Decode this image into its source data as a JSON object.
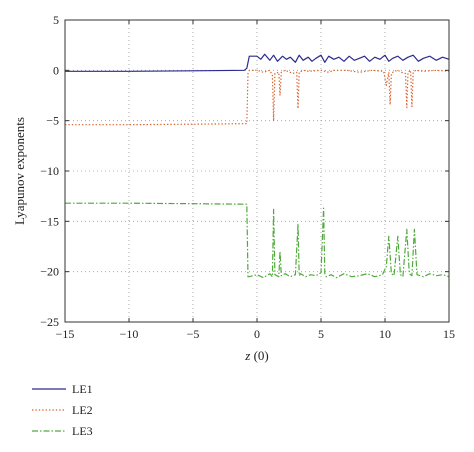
{
  "chart_data": {
    "type": "line",
    "title": "",
    "xlabel_var": "z",
    "xlabel_rest": " (0)",
    "ylabel": "Lyapunov exponents",
    "xlim": [
      -15,
      15
    ],
    "ylim": [
      -25,
      5
    ],
    "xticks": [
      -15,
      -10,
      -5,
      0,
      5,
      10,
      15
    ],
    "yticks": [
      5,
      0,
      -5,
      -10,
      -15,
      -20,
      -25
    ],
    "xtick_labels": [
      "−15",
      "−10",
      "−5",
      "0",
      "5",
      "10",
      "15"
    ],
    "ytick_labels": [
      "5",
      "0",
      "−5",
      "−10",
      "−15",
      "−20",
      "−25"
    ],
    "grid": true,
    "legend_position": "below",
    "series": [
      {
        "name": "LE1",
        "color": "#2b2b8f",
        "style": "solid",
        "x": [
          -15,
          -10,
          -5,
          -1,
          -0.8,
          -0.6,
          0,
          0.3,
          0.6,
          1,
          1.3,
          1.6,
          2,
          2.3,
          2.6,
          3,
          3.3,
          3.6,
          4,
          4.3,
          4.6,
          5,
          5.3,
          5.6,
          6,
          6.4,
          6.8,
          7.2,
          7.6,
          8,
          8.4,
          8.8,
          9.2,
          9.6,
          10,
          10.3,
          10.6,
          11,
          11.4,
          11.8,
          12.2,
          12.6,
          13,
          13.5,
          14,
          14.5,
          15
        ],
        "y": [
          -0.1,
          -0.1,
          -0.05,
          0,
          0.2,
          1.4,
          1.4,
          1.1,
          1.6,
          1.0,
          1.5,
          0.9,
          1.4,
          1.1,
          1.3,
          0.8,
          1.5,
          1.0,
          1.3,
          0.9,
          1.2,
          1.5,
          0.8,
          1.4,
          1.1,
          1.3,
          0.9,
          1.4,
          1.0,
          1.2,
          1.4,
          0.9,
          1.3,
          1.1,
          1.5,
          0.9,
          1.2,
          1.4,
          1.0,
          1.3,
          1.5,
          0.9,
          1.2,
          1.4,
          1.0,
          1.3,
          1.1
        ]
      },
      {
        "name": "LE2",
        "color": "#d9622b",
        "style": "dotted",
        "x": [
          -15,
          -10,
          -5,
          -1,
          -0.8,
          -0.7,
          -0.6,
          0,
          0.5,
          1,
          1.2,
          1.3,
          1.4,
          1.7,
          1.8,
          1.9,
          2.2,
          2.8,
          3.1,
          3.2,
          3.3,
          3.6,
          4,
          5,
          5.6,
          6,
          7,
          8,
          9,
          9.9,
          10.1,
          10.3,
          10.4,
          10.5,
          10.7,
          11,
          11.3,
          11.6,
          11.7,
          11.8,
          12,
          12.1,
          12.2,
          12.4,
          13,
          14,
          15
        ],
        "y": [
          -5.4,
          -5.4,
          -5.35,
          -5.3,
          -5.3,
          -0.3,
          0,
          0,
          -0.2,
          0,
          -0.5,
          -5.0,
          -0.3,
          -0.2,
          -2.5,
          -0.2,
          0,
          -0.3,
          -0.2,
          -3.8,
          -0.2,
          0,
          -0.1,
          0,
          -0.2,
          0,
          0,
          -0.2,
          0,
          -0.1,
          -1.5,
          -0.2,
          -3.4,
          -0.3,
          -0.1,
          0,
          -0.2,
          -0.3,
          -3.7,
          -0.2,
          0,
          -3.6,
          -0.2,
          0,
          -0.1,
          0,
          -0.1
        ]
      },
      {
        "name": "LE3",
        "color": "#4faa3a",
        "style": "dashdot",
        "x": [
          -15,
          -10,
          -5,
          -1,
          -0.8,
          -0.7,
          -0.6,
          0,
          0.5,
          1,
          1.2,
          1.3,
          1.4,
          1.7,
          1.8,
          1.9,
          2.2,
          2.6,
          3,
          3.2,
          3.3,
          3.4,
          3.8,
          4.2,
          4.6,
          5,
          5.2,
          5.3,
          5.4,
          5.8,
          6.2,
          6.8,
          7.4,
          8,
          8.6,
          9.2,
          9.8,
          10.1,
          10.3,
          10.5,
          10.7,
          11,
          11.2,
          11.4,
          11.7,
          11.9,
          12.1,
          12.3,
          12.5,
          13,
          13.5,
          14,
          14.5,
          15
        ],
        "y": [
          -13.2,
          -13.2,
          -13.25,
          -13.3,
          -13.3,
          -20.5,
          -20.5,
          -20.3,
          -20.6,
          -20.2,
          -20.5,
          -13.8,
          -20.3,
          -20.5,
          -18.0,
          -20.4,
          -20.2,
          -20.5,
          -20.3,
          -15.3,
          -20.4,
          -20.2,
          -20.5,
          -20.3,
          -20.4,
          -20.1,
          -13.7,
          -20.2,
          -20.5,
          -20.3,
          -20.6,
          -20.2,
          -20.5,
          -20.4,
          -20.2,
          -20.5,
          -20.3,
          -19.5,
          -16.5,
          -20.2,
          -20.4,
          -16.5,
          -20.3,
          -20.5,
          -15.8,
          -20.2,
          -20.4,
          -15.8,
          -20.3,
          -20.5,
          -20.2,
          -20.4,
          -20.3,
          -20.5
        ]
      }
    ]
  }
}
